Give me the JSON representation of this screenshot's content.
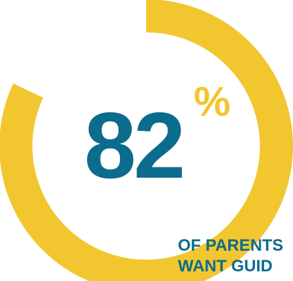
{
  "chart_data": {
    "type": "pie",
    "title": "",
    "values": [
      82
    ],
    "max": 100,
    "value_label": "82",
    "unit_label": "%",
    "caption_lines": [
      "OF PARENTS",
      "WANT GUID"
    ]
  },
  "colors": {
    "ring": "#F2C62F",
    "number": "#0B6C8D",
    "percent": "#F2C62F",
    "caption": "#0B6C8D",
    "background": "#FFFFFF"
  }
}
